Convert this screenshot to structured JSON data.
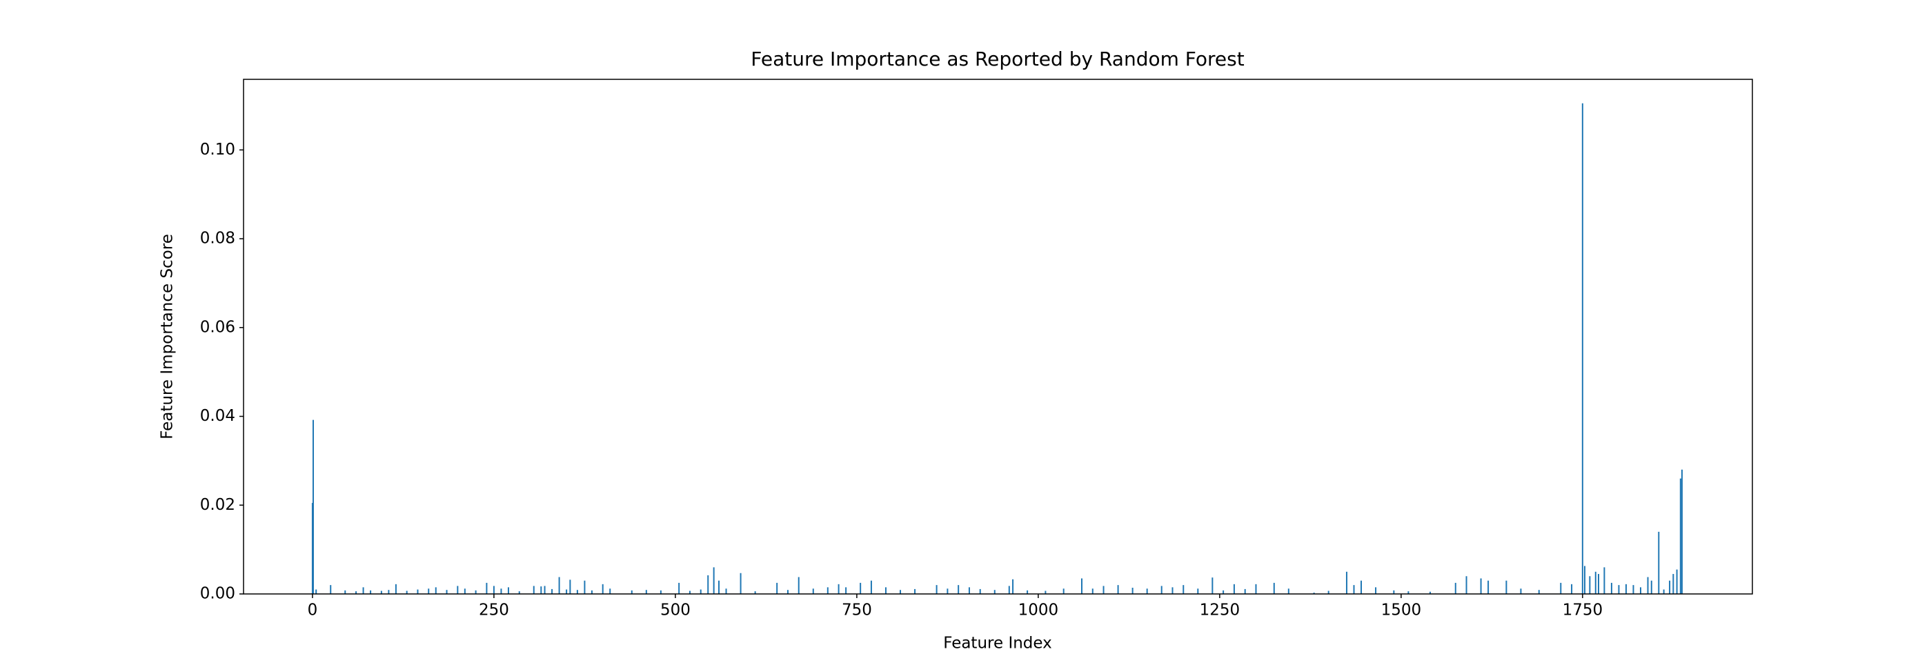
{
  "chart_data": {
    "type": "bar",
    "title": "Feature Importance as Reported by Random Forest",
    "xlabel": "Feature Index",
    "ylabel": "Feature Importance Score",
    "color": "#1f77b4",
    "x": [
      0,
      1,
      5,
      25,
      45,
      60,
      70,
      80,
      95,
      105,
      115,
      130,
      145,
      160,
      170,
      185,
      200,
      210,
      225,
      240,
      250,
      260,
      270,
      285,
      305,
      315,
      320,
      330,
      340,
      350,
      355,
      365,
      375,
      385,
      400,
      410,
      440,
      460,
      480,
      505,
      520,
      535,
      545,
      553,
      560,
      570,
      590,
      610,
      640,
      655,
      670,
      690,
      710,
      725,
      735,
      755,
      770,
      790,
      810,
      830,
      860,
      875,
      890,
      905,
      920,
      940,
      960,
      965,
      985,
      1010,
      1035,
      1060,
      1075,
      1090,
      1110,
      1130,
      1150,
      1170,
      1185,
      1200,
      1220,
      1240,
      1255,
      1270,
      1285,
      1300,
      1325,
      1345,
      1380,
      1400,
      1425,
      1435,
      1445,
      1465,
      1490,
      1510,
      1540,
      1575,
      1590,
      1610,
      1620,
      1645,
      1665,
      1690,
      1720,
      1735,
      1750,
      1753,
      1760,
      1768,
      1772,
      1780,
      1790,
      1800,
      1810,
      1820,
      1830,
      1840,
      1845,
      1855,
      1862,
      1870,
      1875,
      1880,
      1885,
      1887
    ],
    "values": [
      0.0205,
      0.0392,
      0.001,
      0.002,
      0.0008,
      0.0006,
      0.0015,
      0.0008,
      0.0007,
      0.0009,
      0.0022,
      0.0007,
      0.001,
      0.0012,
      0.0015,
      0.0009,
      0.0018,
      0.0012,
      0.0008,
      0.0025,
      0.0018,
      0.0012,
      0.0015,
      0.0006,
      0.0018,
      0.0017,
      0.0018,
      0.0011,
      0.0038,
      0.001,
      0.0032,
      0.0009,
      0.003,
      0.0008,
      0.0022,
      0.0012,
      0.0008,
      0.0009,
      0.0008,
      0.0025,
      0.0007,
      0.001,
      0.0042,
      0.006,
      0.003,
      0.0012,
      0.0047,
      0.0006,
      0.0025,
      0.0009,
      0.0038,
      0.0012,
      0.0015,
      0.0022,
      0.0015,
      0.0025,
      0.003,
      0.0015,
      0.0009,
      0.0011,
      0.002,
      0.0012,
      0.002,
      0.0015,
      0.0011,
      0.0009,
      0.0018,
      0.0033,
      0.0008,
      0.0007,
      0.0012,
      0.0035,
      0.0012,
      0.0018,
      0.002,
      0.0014,
      0.0012,
      0.0018,
      0.0015,
      0.002,
      0.0012,
      0.0037,
      0.0008,
      0.0022,
      0.0011,
      0.0022,
      0.0025,
      0.0012,
      0.0003,
      0.0007,
      0.005,
      0.002,
      0.003,
      0.0015,
      0.0008,
      0.0006,
      0.0005,
      0.0025,
      0.004,
      0.0035,
      0.003,
      0.003,
      0.0012,
      0.0009,
      0.0025,
      0.0022,
      0.1105,
      0.0063,
      0.004,
      0.005,
      0.0045,
      0.006,
      0.0025,
      0.002,
      0.0022,
      0.002,
      0.0015,
      0.0038,
      0.003,
      0.014,
      0.001,
      0.003,
      0.0045,
      0.0055,
      0.026,
      0.028
    ],
    "xlim": [
      -95,
      1984
    ],
    "ylim": [
      0,
      0.1159
    ],
    "xticks": [
      0,
      250,
      500,
      750,
      1000,
      1250,
      1500,
      1750
    ],
    "yticks": [
      {
        "value": 0,
        "label": "0.00"
      },
      {
        "value": 0.02,
        "label": "0.02"
      },
      {
        "value": 0.04,
        "label": "0.04"
      },
      {
        "value": 0.06,
        "label": "0.06"
      },
      {
        "value": 0.08,
        "label": "0.08"
      },
      {
        "value": 0.1,
        "label": "0.10"
      }
    ]
  }
}
